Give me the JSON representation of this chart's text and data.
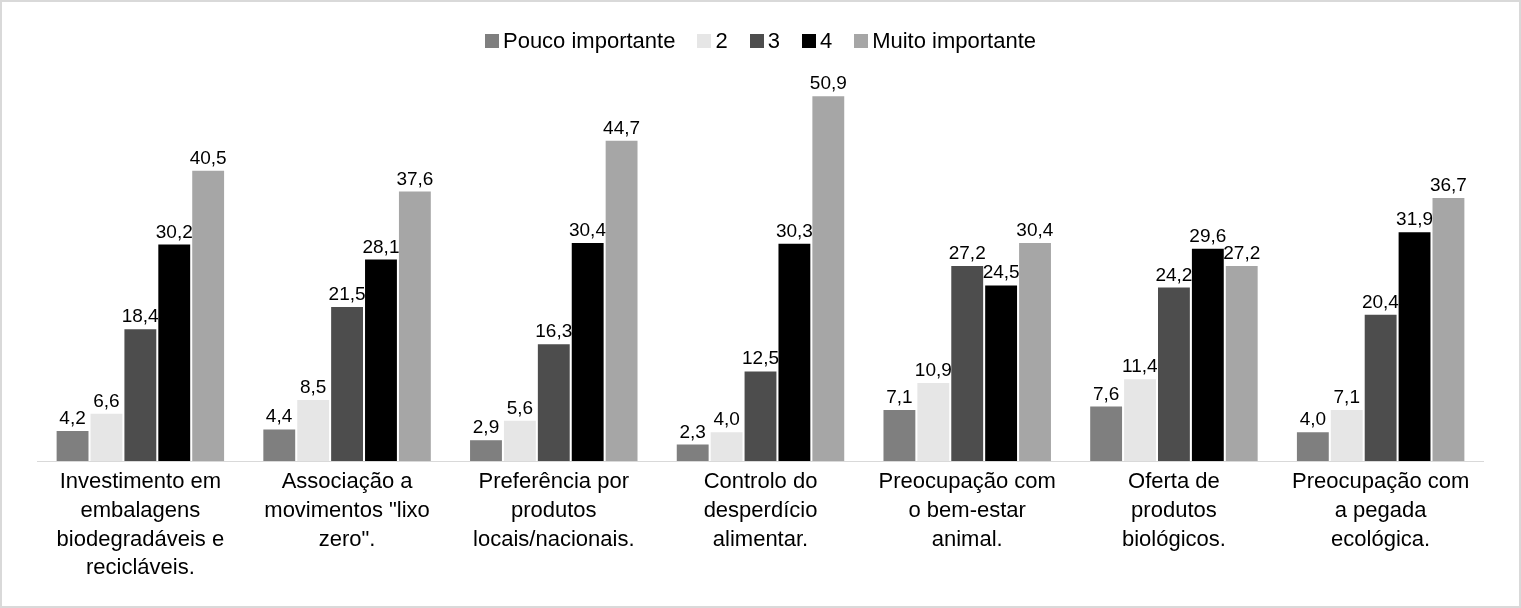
{
  "chart_data": {
    "type": "bar",
    "categories": [
      "Investimento em embalagens biodegradáveis e recicláveis.",
      "Associação a movimentos \"lixo zero\".",
      "Preferência por produtos locais/nacionais.",
      "Controlo do desperdício alimentar.",
      "Preocupação com o bem-estar animal.",
      "Oferta de produtos biológicos.",
      "Preocupação com a pegada ecológica."
    ],
    "series": [
      {
        "name": "Pouco importante",
        "color": "#7f7f7f",
        "values": [
          4.2,
          4.4,
          2.9,
          2.3,
          7.1,
          7.6,
          4.0
        ],
        "value_labels": [
          "4,2",
          "4,4",
          "2,9",
          "2,3",
          "7,1",
          "7,6",
          "4,0"
        ]
      },
      {
        "name": "2",
        "color": "#e6e6e6",
        "values": [
          6.6,
          8.5,
          5.6,
          4.0,
          10.9,
          11.4,
          7.1
        ],
        "value_labels": [
          "6,6",
          "8,5",
          "5,6",
          "4,0",
          "10,9",
          "11,4",
          "7,1"
        ]
      },
      {
        "name": "3",
        "color": "#4d4d4d",
        "values": [
          18.4,
          21.5,
          16.3,
          12.5,
          27.2,
          24.2,
          20.4
        ],
        "value_labels": [
          "18,4",
          "21,5",
          "16,3",
          "12,5",
          "27,2",
          "24,2",
          "20,4"
        ]
      },
      {
        "name": "4",
        "color": "#000000",
        "values": [
          30.2,
          28.1,
          30.4,
          30.3,
          24.5,
          29.6,
          31.9
        ],
        "value_labels": [
          "30,2",
          "28,1",
          "30,4",
          "30,3",
          "24,5",
          "29,6",
          "31,9"
        ]
      },
      {
        "name": "Muito importante",
        "color": "#a6a6a6",
        "values": [
          40.5,
          37.6,
          44.7,
          50.9,
          30.4,
          27.2,
          36.7
        ],
        "value_labels": [
          "40,5",
          "37,6",
          "44,7",
          "50,9",
          "30,4",
          "27,2",
          "36,7"
        ]
      }
    ],
    "tick_labels": "x",
    "grid": false,
    "legend": "top"
  }
}
